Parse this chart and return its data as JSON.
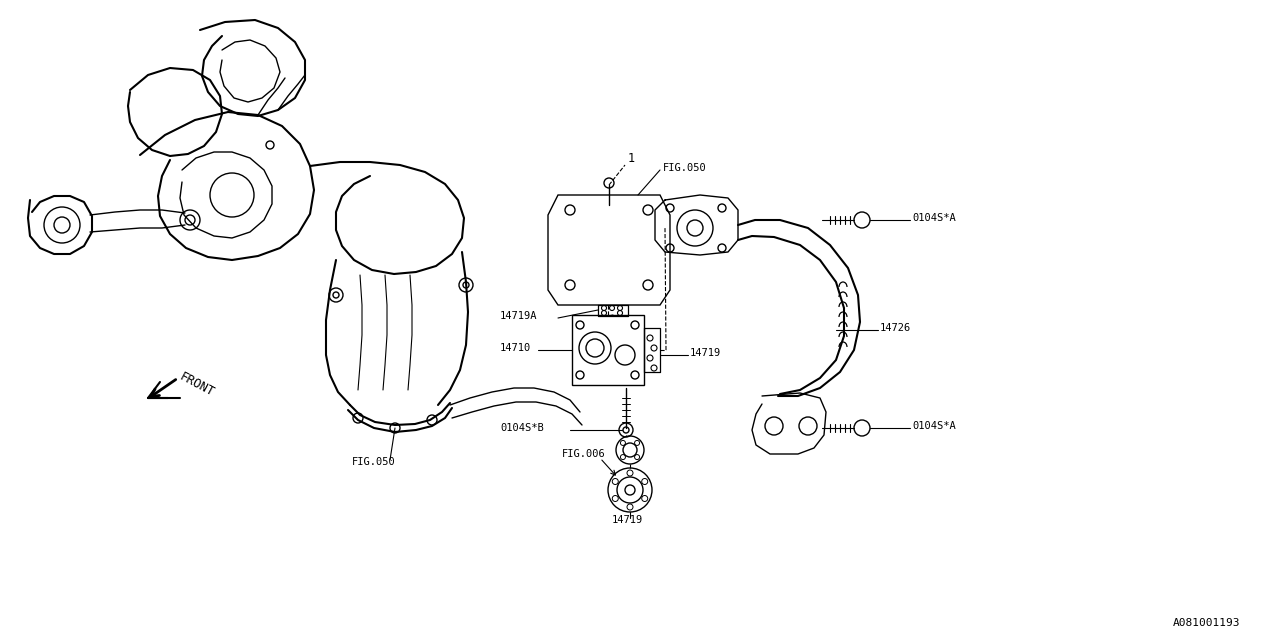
{
  "bg_color": "#ffffff",
  "line_color": "#000000",
  "figsize": [
    12.8,
    6.4
  ],
  "dpi": 100,
  "labels": {
    "fig050_top": "FIG.050",
    "fig050_bottom": "FIG.050",
    "fig006": "FIG.006",
    "label_1": "1",
    "label_14719A": "14719A",
    "label_14710": "14710",
    "label_14719_mid": "14719",
    "label_14719_bot": "14719",
    "label_0104SA_top": "0104S*A",
    "label_0104SA_bot": "0104S*A",
    "label_0104SB": "0104S*B",
    "label_14726": "14726",
    "front_text": "FRONT",
    "diagram_id": "A081001193"
  },
  "font_size_labels": 7.5,
  "font_size_id": 8
}
